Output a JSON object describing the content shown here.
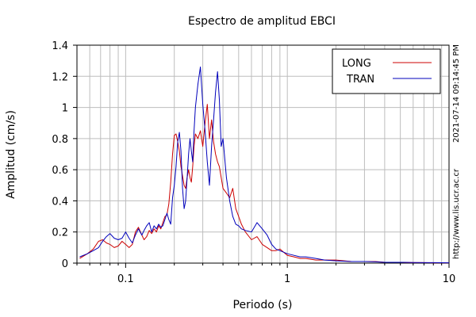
{
  "chart_data": {
    "type": "line",
    "title": "Espectro de amplitud EBCI",
    "xlabel": "Periodo (s)",
    "ylabel": "Amplitud (cm/s)",
    "x_scale": "log",
    "xlim": [
      0.05,
      10
    ],
    "ylim": [
      0,
      1.4
    ],
    "x_ticks": [
      {
        "value": 0.1,
        "label": "0.1"
      },
      {
        "value": 1,
        "label": "1"
      },
      {
        "value": 10,
        "label": "10"
      }
    ],
    "y_ticks": [
      {
        "value": 0,
        "label": "0"
      },
      {
        "value": 0.2,
        "label": "0.2"
      },
      {
        "value": 0.4,
        "label": "0.4"
      },
      {
        "value": 0.6,
        "label": "0.6"
      },
      {
        "value": 0.8,
        "label": "0.8"
      },
      {
        "value": 1.0,
        "label": "1"
      },
      {
        "value": 1.2,
        "label": "1.2"
      },
      {
        "value": 1.4,
        "label": "1.4"
      }
    ],
    "grid": true,
    "legend_position": "top-right",
    "series": [
      {
        "name": "LONG",
        "color": "#cc0000",
        "x": [
          0.052,
          0.058,
          0.063,
          0.068,
          0.072,
          0.076,
          0.08,
          0.085,
          0.09,
          0.095,
          0.1,
          0.105,
          0.11,
          0.115,
          0.12,
          0.126,
          0.13,
          0.135,
          0.14,
          0.145,
          0.15,
          0.155,
          0.16,
          0.165,
          0.17,
          0.175,
          0.18,
          0.185,
          0.19,
          0.195,
          0.2,
          0.205,
          0.21,
          0.215,
          0.22,
          0.225,
          0.23,
          0.235,
          0.24,
          0.245,
          0.25,
          0.255,
          0.26,
          0.265,
          0.27,
          0.28,
          0.29,
          0.3,
          0.31,
          0.32,
          0.33,
          0.34,
          0.35,
          0.36,
          0.37,
          0.38,
          0.39,
          0.4,
          0.42,
          0.44,
          0.46,
          0.48,
          0.5,
          0.52,
          0.55,
          0.6,
          0.65,
          0.7,
          0.75,
          0.8,
          0.85,
          0.9,
          1.0,
          1.1,
          1.2,
          1.3,
          1.5,
          1.7,
          2.0,
          2.5,
          3.0,
          3.5,
          4.0,
          5.0,
          6.0,
          7.0,
          8.0,
          10.0
        ],
        "y": [
          0.03,
          0.06,
          0.09,
          0.14,
          0.15,
          0.13,
          0.12,
          0.1,
          0.11,
          0.14,
          0.12,
          0.1,
          0.12,
          0.2,
          0.23,
          0.18,
          0.15,
          0.17,
          0.21,
          0.19,
          0.22,
          0.2,
          0.24,
          0.22,
          0.26,
          0.3,
          0.31,
          0.38,
          0.52,
          0.7,
          0.82,
          0.83,
          0.78,
          0.72,
          0.62,
          0.56,
          0.5,
          0.48,
          0.55,
          0.6,
          0.55,
          0.52,
          0.62,
          0.75,
          0.83,
          0.8,
          0.85,
          0.75,
          0.9,
          1.02,
          0.8,
          0.92,
          0.78,
          0.7,
          0.65,
          0.62,
          0.55,
          0.48,
          0.45,
          0.42,
          0.48,
          0.35,
          0.3,
          0.25,
          0.2,
          0.15,
          0.17,
          0.12,
          0.1,
          0.08,
          0.08,
          0.09,
          0.05,
          0.04,
          0.03,
          0.03,
          0.02,
          0.02,
          0.02,
          0.01,
          0.01,
          0.01,
          0.005,
          0.005,
          0.003,
          0.003,
          0.002,
          0.002
        ]
      },
      {
        "name": "TRAN",
        "color": "#0000bb",
        "x": [
          0.052,
          0.058,
          0.063,
          0.068,
          0.072,
          0.076,
          0.08,
          0.085,
          0.09,
          0.095,
          0.1,
          0.105,
          0.11,
          0.115,
          0.12,
          0.126,
          0.13,
          0.135,
          0.14,
          0.145,
          0.15,
          0.155,
          0.16,
          0.165,
          0.17,
          0.175,
          0.18,
          0.185,
          0.19,
          0.195,
          0.2,
          0.205,
          0.21,
          0.215,
          0.22,
          0.225,
          0.23,
          0.235,
          0.24,
          0.245,
          0.25,
          0.255,
          0.26,
          0.265,
          0.27,
          0.28,
          0.29,
          0.3,
          0.31,
          0.32,
          0.33,
          0.34,
          0.35,
          0.36,
          0.37,
          0.38,
          0.39,
          0.4,
          0.42,
          0.44,
          0.46,
          0.48,
          0.5,
          0.52,
          0.55,
          0.6,
          0.65,
          0.7,
          0.75,
          0.8,
          0.85,
          0.9,
          1.0,
          1.1,
          1.2,
          1.3,
          1.5,
          1.7,
          2.0,
          2.5,
          3.0,
          3.5,
          4.0,
          5.0,
          6.0,
          7.0,
          8.0,
          10.0
        ],
        "y": [
          0.04,
          0.06,
          0.08,
          0.1,
          0.14,
          0.17,
          0.19,
          0.16,
          0.15,
          0.16,
          0.2,
          0.16,
          0.13,
          0.18,
          0.22,
          0.18,
          0.21,
          0.24,
          0.26,
          0.2,
          0.24,
          0.22,
          0.25,
          0.23,
          0.24,
          0.28,
          0.32,
          0.28,
          0.25,
          0.42,
          0.5,
          0.62,
          0.78,
          0.84,
          0.72,
          0.48,
          0.35,
          0.4,
          0.55,
          0.7,
          0.8,
          0.72,
          0.65,
          0.85,
          1.0,
          1.15,
          1.26,
          1.02,
          0.85,
          0.65,
          0.5,
          0.75,
          0.92,
          1.1,
          1.23,
          1.05,
          0.75,
          0.8,
          0.55,
          0.4,
          0.3,
          0.25,
          0.24,
          0.22,
          0.21,
          0.2,
          0.26,
          0.22,
          0.18,
          0.12,
          0.09,
          0.08,
          0.06,
          0.05,
          0.04,
          0.04,
          0.03,
          0.02,
          0.015,
          0.01,
          0.01,
          0.008,
          0.005,
          0.005,
          0.004,
          0.003,
          0.003,
          0.002
        ]
      }
    ]
  },
  "side_text_right": "2021-07-14 09:14:45 PM",
  "side_text_url": "http://www.lis.ucr.ac.cr"
}
